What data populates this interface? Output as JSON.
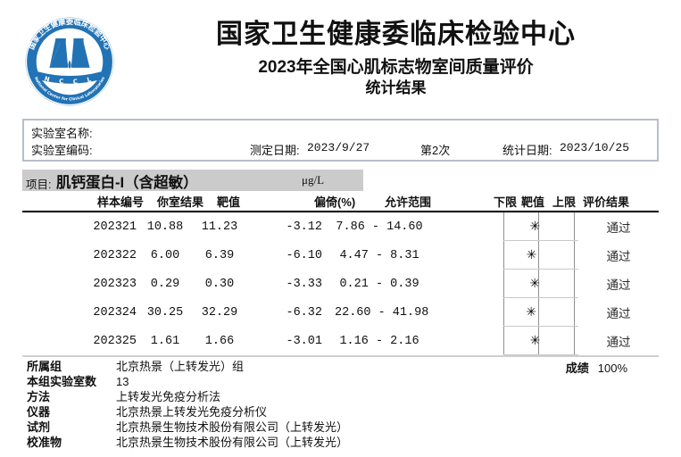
{
  "logo": {
    "ring_text_top": "国家卫生健康委临床检验中心",
    "ring_text_bottom": "National Center for Clinical Laboratories",
    "band_text": "N C C L",
    "blue": "#2273b5"
  },
  "header": {
    "org_title": "国家卫生健康委临床检验中心",
    "subtitle": "2023年全国心肌标志物室间质量评价",
    "subtitle2": "统计结果"
  },
  "info": {
    "lab_name_label": "实验室名称:",
    "lab_name_value": "",
    "lab_code_label": "实验室编码:",
    "lab_code_value": "",
    "test_date_label": "测定日期:",
    "test_date_value": "2023/9/27",
    "round_label": "第2次",
    "stat_date_label": "统计日期:",
    "stat_date_value": "2023/10/25"
  },
  "project": {
    "label": "项目:",
    "name": "肌钙蛋白-I（含超敏）",
    "unit": "μg/L"
  },
  "table": {
    "headers": {
      "sample": "样本编号",
      "result": "你室结果",
      "target": "靶值",
      "bias": "偏倚(%)",
      "range": "允许范围",
      "lower": "下限",
      "target2": "靶值",
      "upper": "上限",
      "evaluation": "评价结果"
    },
    "marker_symbol": "✳",
    "bias_full_scale_percent": 30,
    "rows": [
      {
        "sample": "202321",
        "result": "10.88",
        "target": "11.23",
        "bias": "-3.12",
        "range": "7.86 - 14.60",
        "bias_value": -3.12,
        "evaluation": "通过"
      },
      {
        "sample": "202322",
        "result": "6.00",
        "target": "6.39",
        "bias": "-6.10",
        "range": "4.47 - 8.31",
        "bias_value": -6.1,
        "evaluation": "通过"
      },
      {
        "sample": "202323",
        "result": "0.29",
        "target": "0.30",
        "bias": "-3.33",
        "range": "0.21 - 0.39",
        "bias_value": -3.33,
        "evaluation": "通过"
      },
      {
        "sample": "202324",
        "result": "30.25",
        "target": "32.29",
        "bias": "-6.32",
        "range": "22.60 - 41.98",
        "bias_value": -6.32,
        "evaluation": "通过"
      },
      {
        "sample": "202325",
        "result": "1.61",
        "target": "1.66",
        "bias": "-3.01",
        "range": "1.16 - 2.16",
        "bias_value": -3.01,
        "evaluation": "通过"
      }
    ]
  },
  "footer": {
    "rows": [
      {
        "label": "所属组",
        "value": "北京热景（上转发光）组"
      },
      {
        "label": "本组实验室数",
        "value": "13"
      },
      {
        "label": "方法",
        "value": "上转发光免疫分析法"
      },
      {
        "label": "仪器",
        "value": "北京热景上转发光免疫分析仪"
      },
      {
        "label": "试剂",
        "value": "北京热景生物技术股份有限公司（上转发光）"
      },
      {
        "label": "校准物",
        "value": "北京热景生物技术股份有限公司（上转发光）"
      }
    ],
    "score_label": "成绩",
    "score_value": "100%"
  }
}
